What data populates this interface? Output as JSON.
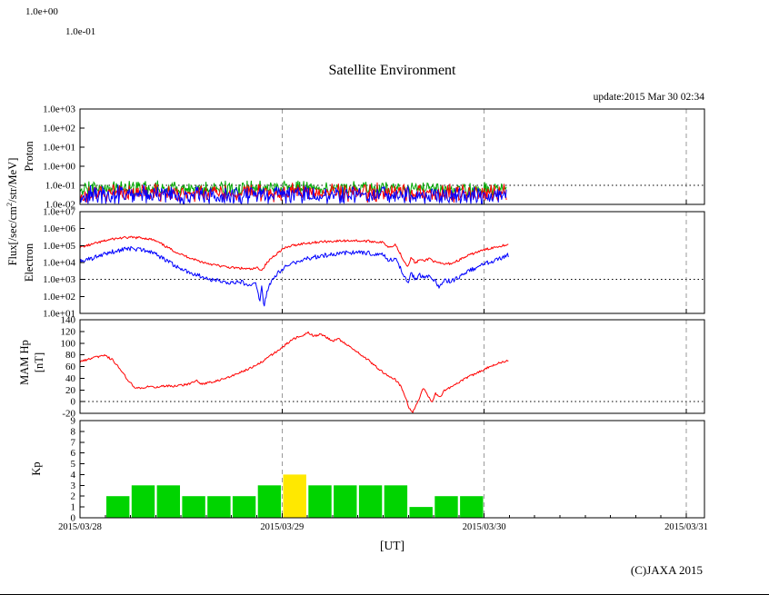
{
  "page": {
    "title": "Satellite Environment",
    "update_label": "update:2015 Mar 30 02:34",
    "x_axis_title": "[UT]",
    "copyright": "(C)JAXA 2015",
    "stray_labels": [
      "1.0e+00",
      "1.0e-01"
    ],
    "flux_label": {
      "pre": "Flux[/sec/cm",
      "sup": "2",
      "post": "/str/MeV]"
    }
  },
  "axes": {
    "x": {
      "start_day": 0,
      "end_day": 3.09,
      "tick_positions": [
        0,
        1,
        2,
        3
      ],
      "tick_labels": [
        "2015/03/28",
        "2015/03/29",
        "2015/03/30",
        "2015/03/31"
      ],
      "minor_tick_hours": 3
    }
  },
  "chart_data": [
    {
      "id": "proton",
      "type": "line",
      "ylabel": "Proton",
      "yscale": "log",
      "ylim": [
        0.01,
        1000
      ],
      "yticks": [
        1000,
        100,
        10,
        1,
        0.1,
        0.01
      ],
      "ytick_labels": [
        "1.0e+03",
        "1.0e+02",
        "1.0e+01",
        "1.0e+00",
        "1.0e-01",
        "1.0e-02"
      ],
      "threshold": 0.1,
      "data_end_day": 2.11,
      "noise_series": [
        {
          "name": "proton-green",
          "color": "#00a800",
          "center": 0.07,
          "spread": 0.45,
          "seed": 101
        },
        {
          "name": "proton-red",
          "color": "#ff0000",
          "center": 0.04,
          "spread": 0.55,
          "seed": 202
        },
        {
          "name": "proton-blue",
          "color": "#0000ff",
          "center": 0.03,
          "spread": 0.6,
          "seed": 303
        }
      ]
    },
    {
      "id": "electron",
      "type": "line",
      "ylabel": "Electron",
      "yscale": "log",
      "ylim": [
        10,
        10000000
      ],
      "yticks": [
        10000000,
        1000000,
        100000,
        10000,
        1000,
        100,
        10
      ],
      "ytick_labels": [
        "1.0e+07",
        "1.0e+06",
        "1.0e+05",
        "1.0e+04",
        "1.0e+03",
        "1.0e+02",
        "1.0e+01"
      ],
      "threshold": 1000,
      "series": [
        {
          "name": "electron-red",
          "color": "#ff0000",
          "jitter": 0.07,
          "seed": 11,
          "points": [
            [
              0.0,
              80000
            ],
            [
              0.05,
              110000
            ],
            [
              0.1,
              160000
            ],
            [
              0.15,
              230000
            ],
            [
              0.2,
              280000
            ],
            [
              0.25,
              300000
            ],
            [
              0.3,
              290000
            ],
            [
              0.33,
              260000
            ],
            [
              0.36,
              220000
            ],
            [
              0.4,
              130000
            ],
            [
              0.45,
              60000
            ],
            [
              0.5,
              30000
            ],
            [
              0.55,
              18000
            ],
            [
              0.6,
              11000
            ],
            [
              0.65,
              8000
            ],
            [
              0.7,
              6000
            ],
            [
              0.75,
              5000
            ],
            [
              0.8,
              4500
            ],
            [
              0.85,
              4000
            ],
            [
              0.88,
              5000
            ],
            [
              0.9,
              3500
            ],
            [
              0.92,
              8000
            ],
            [
              0.95,
              20000
            ],
            [
              1.0,
              60000
            ],
            [
              1.05,
              100000
            ],
            [
              1.1,
              130000
            ],
            [
              1.15,
              150000
            ],
            [
              1.2,
              170000
            ],
            [
              1.25,
              180000
            ],
            [
              1.3,
              190000
            ],
            [
              1.35,
              200000
            ],
            [
              1.4,
              185000
            ],
            [
              1.45,
              175000
            ],
            [
              1.5,
              150000
            ],
            [
              1.53,
              80000
            ],
            [
              1.56,
              120000
            ],
            [
              1.6,
              15000
            ],
            [
              1.62,
              6000
            ],
            [
              1.64,
              20000
            ],
            [
              1.66,
              9000
            ],
            [
              1.68,
              15000
            ],
            [
              1.7,
              12000
            ],
            [
              1.73,
              18000
            ],
            [
              1.76,
              10000
            ],
            [
              1.8,
              8000
            ],
            [
              1.84,
              9000
            ],
            [
              1.88,
              15000
            ],
            [
              1.92,
              25000
            ],
            [
              1.96,
              40000
            ],
            [
              2.0,
              55000
            ],
            [
              2.04,
              75000
            ],
            [
              2.08,
              95000
            ],
            [
              2.12,
              120000
            ]
          ]
        },
        {
          "name": "electron-blue",
          "color": "#0000ff",
          "jitter": 0.13,
          "seed": 22,
          "points": [
            [
              0.0,
              12000
            ],
            [
              0.05,
              16000
            ],
            [
              0.1,
              25000
            ],
            [
              0.15,
              40000
            ],
            [
              0.2,
              55000
            ],
            [
              0.25,
              65000
            ],
            [
              0.3,
              60000
            ],
            [
              0.33,
              50000
            ],
            [
              0.36,
              40000
            ],
            [
              0.4,
              20000
            ],
            [
              0.45,
              9000
            ],
            [
              0.5,
              4000
            ],
            [
              0.55,
              2500
            ],
            [
              0.6,
              1500
            ],
            [
              0.65,
              1000
            ],
            [
              0.7,
              800
            ],
            [
              0.75,
              600
            ],
            [
              0.8,
              700
            ],
            [
              0.84,
              400
            ],
            [
              0.87,
              500
            ],
            [
              0.89,
              60
            ],
            [
              0.9,
              400
            ],
            [
              0.91,
              25
            ],
            [
              0.93,
              300
            ],
            [
              0.95,
              900
            ],
            [
              0.97,
              2000
            ],
            [
              1.0,
              4000
            ],
            [
              1.05,
              9000
            ],
            [
              1.1,
              14000
            ],
            [
              1.15,
              20000
            ],
            [
              1.2,
              26000
            ],
            [
              1.25,
              30000
            ],
            [
              1.3,
              35000
            ],
            [
              1.35,
              40000
            ],
            [
              1.4,
              38000
            ],
            [
              1.45,
              33000
            ],
            [
              1.5,
              28000
            ],
            [
              1.53,
              12000
            ],
            [
              1.56,
              20000
            ],
            [
              1.6,
              2000
            ],
            [
              1.62,
              600
            ],
            [
              1.64,
              2500
            ],
            [
              1.66,
              900
            ],
            [
              1.68,
              1800
            ],
            [
              1.7,
              1200
            ],
            [
              1.73,
              2000
            ],
            [
              1.76,
              700
            ],
            [
              1.78,
              300
            ],
            [
              1.8,
              900
            ],
            [
              1.84,
              800
            ],
            [
              1.88,
              1500
            ],
            [
              1.92,
              3000
            ],
            [
              1.96,
              5000
            ],
            [
              2.0,
              8000
            ],
            [
              2.04,
              12000
            ],
            [
              2.08,
              18000
            ],
            [
              2.12,
              28000
            ]
          ]
        }
      ]
    },
    {
      "id": "mam-hp",
      "type": "line",
      "ylabel_lines": [
        "MAM Hp",
        "[nT]"
      ],
      "yscale": "linear",
      "ylim": [
        -20,
        140
      ],
      "yticks": [
        140,
        120,
        100,
        80,
        60,
        40,
        20,
        0,
        -20
      ],
      "ytick_labels": [
        "140",
        "120",
        "100",
        "80",
        "60",
        "40",
        "20",
        "0",
        "-20"
      ],
      "threshold": 0,
      "series": [
        {
          "name": "mam-hp-red",
          "color": "#ff0000",
          "jitter": 1.8,
          "seed": 33,
          "points": [
            [
              0.0,
              68
            ],
            [
              0.04,
              72
            ],
            [
              0.08,
              76
            ],
            [
              0.12,
              79
            ],
            [
              0.16,
              72
            ],
            [
              0.2,
              55
            ],
            [
              0.24,
              35
            ],
            [
              0.27,
              25
            ],
            [
              0.3,
              23
            ],
            [
              0.34,
              26
            ],
            [
              0.38,
              24
            ],
            [
              0.42,
              27
            ],
            [
              0.46,
              26
            ],
            [
              0.5,
              28
            ],
            [
              0.54,
              30
            ],
            [
              0.58,
              36
            ],
            [
              0.6,
              30
            ],
            [
              0.63,
              32
            ],
            [
              0.66,
              34
            ],
            [
              0.7,
              38
            ],
            [
              0.74,
              42
            ],
            [
              0.78,
              48
            ],
            [
              0.82,
              54
            ],
            [
              0.86,
              60
            ],
            [
              0.9,
              68
            ],
            [
              0.94,
              78
            ],
            [
              0.98,
              88
            ],
            [
              1.02,
              98
            ],
            [
              1.06,
              108
            ],
            [
              1.1,
              113
            ],
            [
              1.13,
              118
            ],
            [
              1.16,
              112
            ],
            [
              1.19,
              116
            ],
            [
              1.22,
              110
            ],
            [
              1.25,
              104
            ],
            [
              1.28,
              107
            ],
            [
              1.31,
              100
            ],
            [
              1.35,
              90
            ],
            [
              1.39,
              80
            ],
            [
              1.43,
              70
            ],
            [
              1.47,
              58
            ],
            [
              1.5,
              50
            ],
            [
              1.53,
              44
            ],
            [
              1.56,
              38
            ],
            [
              1.59,
              25
            ],
            [
              1.61,
              8
            ],
            [
              1.63,
              -12
            ],
            [
              1.645,
              -20
            ],
            [
              1.66,
              -8
            ],
            [
              1.68,
              6
            ],
            [
              1.7,
              24
            ],
            [
              1.72,
              12
            ],
            [
              1.74,
              -2
            ],
            [
              1.76,
              14
            ],
            [
              1.78,
              6
            ],
            [
              1.8,
              18
            ],
            [
              1.84,
              26
            ],
            [
              1.88,
              34
            ],
            [
              1.92,
              42
            ],
            [
              1.96,
              48
            ],
            [
              2.0,
              55
            ],
            [
              2.04,
              62
            ],
            [
              2.08,
              67
            ],
            [
              2.12,
              70
            ]
          ]
        }
      ]
    },
    {
      "id": "kp",
      "type": "bar",
      "ylabel": "Kp",
      "yscale": "linear",
      "ylim": [
        0,
        9
      ],
      "yticks": [
        9,
        8,
        7,
        6,
        5,
        4,
        3,
        2,
        1,
        0
      ],
      "ytick_labels": [
        "9",
        "8",
        "7",
        "6",
        "5",
        "4",
        "3",
        "2",
        "1",
        "0"
      ],
      "bar_width_days": 0.125,
      "colors": {
        "green": "#00d400",
        "yellow": "#ffe800"
      },
      "bars": [
        {
          "start_day": 0.125,
          "value": 2,
          "level": "green"
        },
        {
          "start_day": 0.25,
          "value": 3,
          "level": "green"
        },
        {
          "start_day": 0.375,
          "value": 3,
          "level": "green"
        },
        {
          "start_day": 0.5,
          "value": 2,
          "level": "green"
        },
        {
          "start_day": 0.625,
          "value": 2,
          "level": "green"
        },
        {
          "start_day": 0.75,
          "value": 2,
          "level": "green"
        },
        {
          "start_day": 0.875,
          "value": 3,
          "level": "green"
        },
        {
          "start_day": 1.0,
          "value": 4,
          "level": "yellow"
        },
        {
          "start_day": 1.125,
          "value": 3,
          "level": "green"
        },
        {
          "start_day": 1.25,
          "value": 3,
          "level": "green"
        },
        {
          "start_day": 1.375,
          "value": 3,
          "level": "green"
        },
        {
          "start_day": 1.5,
          "value": 3,
          "level": "green"
        },
        {
          "start_day": 1.625,
          "value": 1,
          "level": "green"
        },
        {
          "start_day": 1.75,
          "value": 2,
          "level": "green"
        },
        {
          "start_day": 1.875,
          "value": 2,
          "level": "green"
        }
      ]
    }
  ]
}
